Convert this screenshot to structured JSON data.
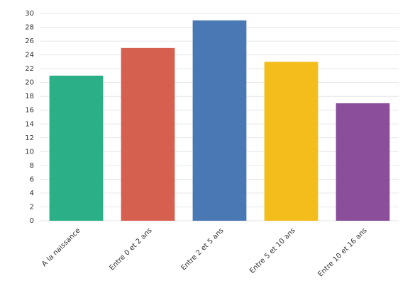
{
  "chart_data": {
    "type": "bar",
    "categories": [
      "A la naissance",
      "Entre 0 et 2 ans",
      "Entre 2 et 5 ans",
      "Entre 5 et 10 ans",
      "Entre 10 et 16 ans"
    ],
    "values": [
      21,
      25,
      29,
      23,
      17
    ],
    "colors": [
      "#2aaf86",
      "#d5604f",
      "#4a78b5",
      "#f3bd1c",
      "#8a4e9b"
    ],
    "ylim": [
      0,
      30
    ],
    "yticks": [
      0,
      2,
      4,
      6,
      8,
      10,
      12,
      14,
      16,
      18,
      20,
      22,
      24,
      26,
      28,
      30
    ],
    "grid": true
  }
}
